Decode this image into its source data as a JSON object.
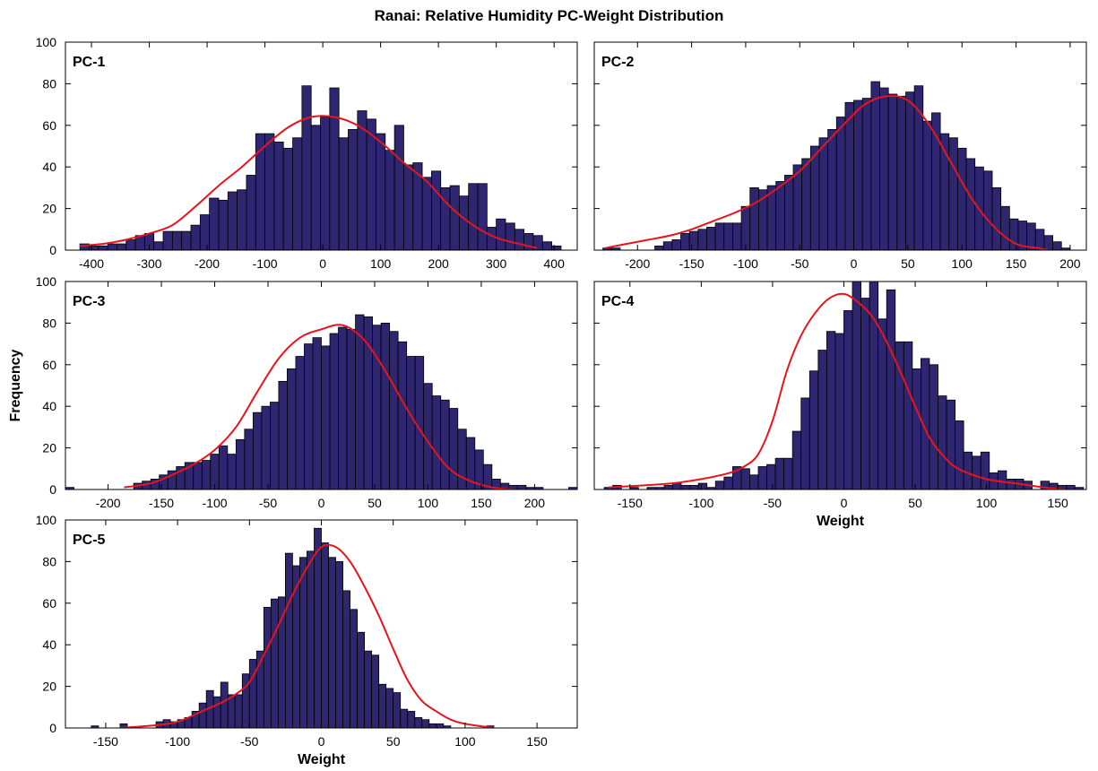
{
  "figure_title": "Ranai: Relative Humidity PC-Weight Distribution",
  "shared_ylabel": "Frequency",
  "colors": {
    "bar_fill": "#2e2670",
    "bar_edge": "#000000",
    "curve": "#e8141c",
    "axis": "#000000"
  },
  "chart_data": [
    {
      "type": "bar",
      "panel": "PC-1",
      "title": "PC-1",
      "xlabel": "",
      "xlim": [
        -445,
        440
      ],
      "ylim": [
        0,
        100
      ],
      "xticks": [
        -400,
        -300,
        -200,
        -100,
        0,
        100,
        200,
        300,
        400
      ],
      "yticks": [
        0,
        20,
        40,
        60,
        80,
        100
      ],
      "bin_start": -420,
      "bin_width": 16,
      "values": [
        3,
        2,
        2,
        3,
        3,
        5,
        7,
        8,
        4,
        9,
        9,
        9,
        12,
        17,
        25,
        24,
        28,
        29,
        36,
        56,
        56,
        52,
        49,
        54,
        79,
        60,
        64,
        78,
        54,
        58,
        67,
        63,
        56,
        48,
        60,
        41,
        42,
        35,
        38,
        30,
        31,
        26,
        32,
        32,
        11,
        15,
        13,
        10,
        8,
        7,
        4,
        2,
        0,
        0,
        0,
        0,
        0,
        0,
        0,
        1
      ],
      "curve": {
        "x": [
          -420,
          -380,
          -340,
          -300,
          -260,
          -220,
          -180,
          -140,
          -100,
          -60,
          -20,
          20,
          60,
          100,
          140,
          180,
          220,
          260,
          300,
          340,
          370
        ],
        "y": [
          2,
          3,
          5,
          8,
          12,
          21,
          31,
          40,
          50,
          59,
          64,
          64,
          60,
          52,
          42,
          33,
          21,
          12,
          6,
          3,
          1
        ]
      }
    },
    {
      "type": "bar",
      "panel": "PC-2",
      "title": "PC-2",
      "xlabel": "",
      "xlim": [
        -240,
        215
      ],
      "ylim": [
        0,
        100
      ],
      "xticks": [
        -200,
        -150,
        -100,
        -50,
        0,
        50,
        100,
        150,
        200
      ],
      "yticks": [
        0,
        20,
        40,
        60,
        80,
        100
      ],
      "bin_start": -232,
      "bin_width": 8,
      "values": [
        1,
        1,
        0,
        0,
        0,
        0,
        2,
        4,
        5,
        8,
        9,
        10,
        11,
        13,
        13,
        13,
        21,
        30,
        29,
        31,
        33,
        36,
        41,
        44,
        50,
        54,
        58,
        64,
        71,
        72,
        73,
        81,
        78,
        75,
        74,
        76,
        79,
        62,
        66,
        56,
        54,
        49,
        44,
        40,
        38,
        30,
        21,
        15,
        14,
        13,
        10,
        7,
        4,
        1,
        0,
        0,
        0,
        0,
        1,
        2
      ],
      "curve": {
        "x": [
          -230,
          -210,
          -190,
          -170,
          -150,
          -130,
          -110,
          -90,
          -70,
          -50,
          -30,
          -10,
          10,
          30,
          50,
          70,
          90,
          110,
          130,
          150,
          170,
          180
        ],
        "y": [
          1,
          3,
          5,
          7,
          10,
          14,
          18,
          23,
          30,
          38,
          49,
          60,
          70,
          74,
          72,
          60,
          42,
          24,
          11,
          3,
          1,
          0
        ]
      }
    },
    {
      "type": "bar",
      "panel": "PC-3",
      "title": "PC-3",
      "xlabel": "",
      "xlim": [
        -240,
        240
      ],
      "ylim": [
        0,
        100
      ],
      "xticks": [
        -200,
        -150,
        -100,
        -50,
        0,
        50,
        100,
        150,
        200
      ],
      "yticks": [
        0,
        20,
        40,
        60,
        80,
        100
      ],
      "bin_start": -240,
      "bin_width": 8,
      "values": [
        1,
        0,
        0,
        0,
        0,
        0,
        0,
        0,
        3,
        4,
        5,
        7,
        9,
        11,
        13,
        13,
        14,
        17,
        21,
        17,
        24,
        29,
        37,
        40,
        42,
        52,
        58,
        64,
        70,
        73,
        69,
        75,
        78,
        77,
        84,
        83,
        79,
        80,
        76,
        71,
        64,
        64,
        51,
        45,
        43,
        39,
        29,
        25,
        19,
        12,
        5,
        3,
        2,
        2,
        1,
        1,
        0,
        0,
        0,
        1
      ],
      "curve": {
        "x": [
          -185,
          -160,
          -140,
          -120,
          -100,
          -80,
          -60,
          -40,
          -20,
          0,
          20,
          40,
          60,
          80,
          100,
          120,
          140,
          160,
          180
        ],
        "y": [
          1,
          3,
          7,
          12,
          19,
          30,
          47,
          63,
          73,
          77,
          79,
          72,
          57,
          39,
          23,
          10,
          4,
          1,
          0
        ]
      }
    },
    {
      "type": "bar",
      "panel": "PC-4",
      "title": "PC-4",
      "xlabel": "Weight",
      "xlim": [
        -175,
        170
      ],
      "ylim": [
        0,
        100
      ],
      "xticks": [
        -150,
        -100,
        -50,
        0,
        50,
        100,
        150
      ],
      "yticks": [
        0,
        20,
        40,
        60,
        80,
        100
      ],
      "bin_start": -168,
      "bin_width": 6,
      "values": [
        1,
        2,
        0,
        1,
        0,
        1,
        1,
        2,
        3,
        2,
        2,
        3,
        1,
        4,
        6,
        11,
        10,
        7,
        11,
        12,
        15,
        15,
        28,
        44,
        57,
        67,
        76,
        75,
        86,
        101,
        92,
        101,
        82,
        96,
        71,
        71,
        58,
        63,
        60,
        45,
        43,
        33,
        18,
        16,
        18,
        8,
        9,
        5,
        5,
        4,
        0,
        4,
        3,
        2,
        2,
        1,
        0,
        1,
        0,
        1
      ],
      "curve": {
        "x": [
          -165,
          -140,
          -120,
          -100,
          -80,
          -70,
          -60,
          -50,
          -40,
          -30,
          -20,
          -10,
          0,
          10,
          20,
          30,
          40,
          50,
          60,
          70,
          80,
          100,
          120,
          140,
          155
        ],
        "y": [
          1,
          2,
          3,
          5,
          8,
          11,
          17,
          33,
          57,
          74,
          85,
          92,
          94,
          90,
          83,
          71,
          56,
          40,
          25,
          16,
          10,
          5,
          3,
          1,
          0
        ]
      }
    },
    {
      "type": "bar",
      "panel": "PC-5",
      "title": "PC-5",
      "xlabel": "Weight",
      "xlim": [
        -178,
        178
      ],
      "ylim": [
        0,
        100
      ],
      "xticks": [
        -150,
        -100,
        -50,
        0,
        50,
        100,
        150
      ],
      "yticks": [
        0,
        20,
        40,
        60,
        80,
        100
      ],
      "bin_start": -160,
      "bin_width": 5,
      "values": [
        1,
        0,
        0,
        0,
        2,
        0,
        0,
        0,
        0,
        3,
        4,
        3,
        4,
        5,
        8,
        12,
        18,
        15,
        22,
        16,
        16,
        26,
        33,
        37,
        58,
        62,
        63,
        84,
        78,
        82,
        85,
        96,
        89,
        82,
        80,
        66,
        57,
        46,
        37,
        35,
        21,
        19,
        17,
        9,
        8,
        5,
        4,
        2,
        2,
        1,
        0,
        0,
        0,
        0,
        0,
        1,
        0,
        0,
        0,
        0
      ],
      "curve": {
        "x": [
          -140,
          -120,
          -100,
          -80,
          -70,
          -60,
          -50,
          -40,
          -30,
          -20,
          -10,
          0,
          10,
          20,
          30,
          40,
          50,
          60,
          70,
          80,
          90,
          100,
          120
        ],
        "y": [
          0,
          1,
          3,
          9,
          12,
          16,
          22,
          35,
          49,
          64,
          77,
          87,
          87,
          80,
          68,
          54,
          38,
          23,
          13,
          8,
          4,
          2,
          0
        ]
      }
    }
  ]
}
